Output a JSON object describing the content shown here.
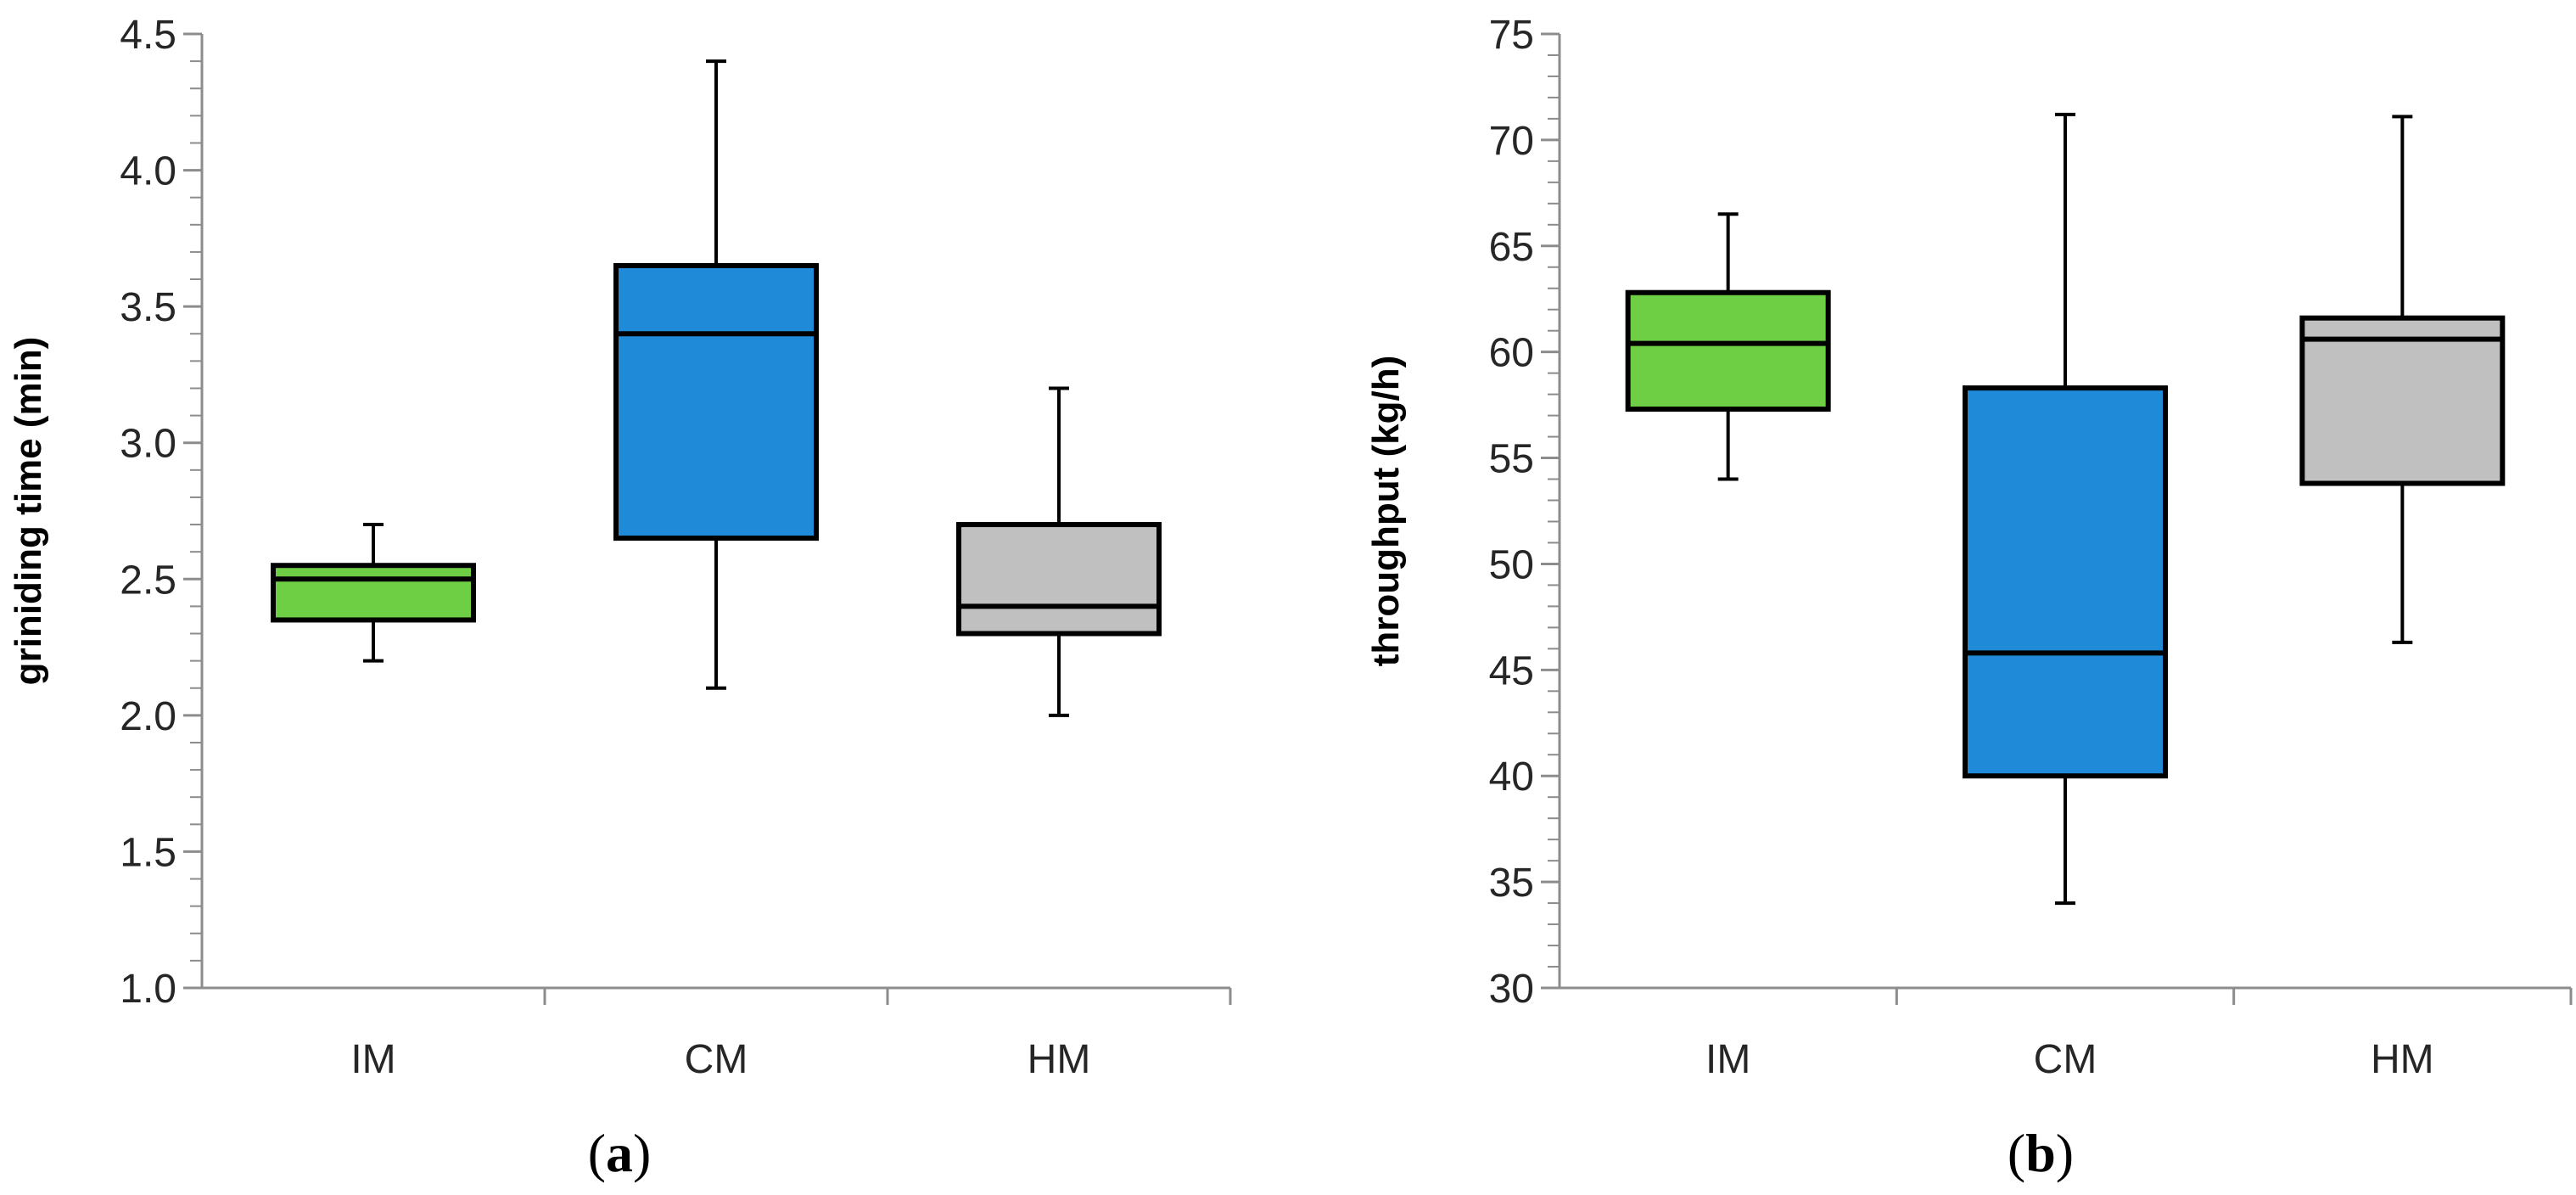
{
  "chart_data": [
    {
      "type": "box",
      "panel_label": "a",
      "ylabel": "griniding time (min)",
      "ylim": [
        1.0,
        4.5
      ],
      "yticks": [
        "1.0",
        "1.5",
        "2.0",
        "2.5",
        "3.0",
        "3.5",
        "4.0",
        "4.5"
      ],
      "minor_tick_step": 0.1,
      "categories": [
        "IM",
        "CM",
        "HM"
      ],
      "boxes": [
        {
          "category": "IM",
          "min": 2.2,
          "q1": 2.35,
          "median": 2.5,
          "q3": 2.55,
          "max": 2.7,
          "color": "#6ECF45"
        },
        {
          "category": "CM",
          "min": 2.1,
          "q1": 2.65,
          "median": 3.4,
          "q3": 3.65,
          "max": 4.4,
          "color": "#1F8BD8"
        },
        {
          "category": "HM",
          "min": 2.0,
          "q1": 2.3,
          "median": 2.4,
          "q3": 2.7,
          "max": 3.2,
          "color": "#C0C0C0"
        }
      ]
    },
    {
      "type": "box",
      "panel_label": "b",
      "ylabel": "throughput (kg/h)",
      "ylim": [
        30,
        75
      ],
      "yticks": [
        "30",
        "35",
        "40",
        "45",
        "50",
        "55",
        "60",
        "65",
        "70",
        "75"
      ],
      "minor_tick_step": 1,
      "categories": [
        "IM",
        "CM",
        "HM"
      ],
      "boxes": [
        {
          "category": "IM",
          "min": 54.0,
          "q1": 57.3,
          "median": 60.4,
          "q3": 62.8,
          "max": 66.5,
          "color": "#6ECF45"
        },
        {
          "category": "CM",
          "min": 34.0,
          "q1": 40.0,
          "median": 45.8,
          "q3": 58.3,
          "max": 71.2,
          "color": "#1F8BD8"
        },
        {
          "category": "HM",
          "min": 46.3,
          "q1": 53.8,
          "median": 60.6,
          "q3": 61.6,
          "max": 71.1,
          "color": "#C0C0C0"
        }
      ]
    }
  ]
}
